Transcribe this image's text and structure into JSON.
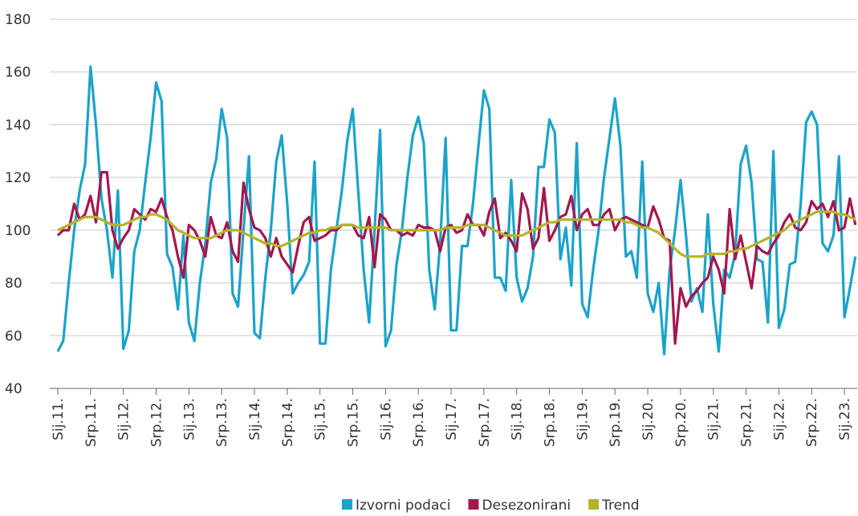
{
  "chart_data": {
    "type": "line",
    "categories": [
      "Sij.11.",
      null,
      null,
      null,
      null,
      null,
      "Srp.11.",
      null,
      null,
      null,
      null,
      null,
      "Sij.12.",
      null,
      null,
      null,
      null,
      null,
      "Srp.12.",
      null,
      null,
      null,
      null,
      null,
      "Sij.13.",
      null,
      null,
      null,
      null,
      null,
      "Srp.13.",
      null,
      null,
      null,
      null,
      null,
      "Sij.14.",
      null,
      null,
      null,
      null,
      null,
      "Srp.14.",
      null,
      null,
      null,
      null,
      null,
      "Sij.15.",
      null,
      null,
      null,
      null,
      null,
      "Srp.15.",
      null,
      null,
      null,
      null,
      null,
      "Sij.16.",
      null,
      null,
      null,
      null,
      null,
      "Srp.16.",
      null,
      null,
      null,
      null,
      null,
      "Sij.17.",
      null,
      null,
      null,
      null,
      null,
      "Srp.17.",
      null,
      null,
      null,
      null,
      null,
      "Sij.18.",
      null,
      null,
      null,
      null,
      null,
      "Srp.18.",
      null,
      null,
      null,
      null,
      null,
      "Sij.19.",
      null,
      null,
      null,
      null,
      null,
      "Srp.19.",
      null,
      null,
      null,
      null,
      null,
      "Sij.20.",
      null,
      null,
      null,
      null,
      null,
      "Srp.20.",
      null,
      null,
      null,
      null,
      null,
      "Sij.21.",
      null,
      null,
      null,
      null,
      null,
      "Srp.21.",
      null,
      null,
      null,
      null,
      null,
      "Sij.22.",
      null,
      null,
      null,
      null,
      null,
      "Srp.22.",
      null,
      null,
      null,
      null,
      null,
      "Sij.23.",
      null,
      null
    ],
    "series": [
      {
        "name": "Izvorni podaci",
        "color": "#1ba3c9",
        "values": [
          54,
          58,
          80,
          100,
          115,
          125,
          162,
          140,
          112,
          100,
          82,
          115,
          55,
          62,
          92,
          100,
          118,
          135,
          156,
          149,
          91,
          86,
          70,
          98,
          65,
          58,
          80,
          95,
          118,
          127,
          146,
          135,
          76,
          71,
          100,
          128,
          61,
          59,
          82,
          100,
          126,
          136,
          110,
          76,
          80,
          83,
          88,
          126,
          57,
          57,
          85,
          100,
          115,
          134,
          146,
          115,
          85,
          65,
          100,
          138,
          56,
          62,
          87,
          100,
          120,
          136,
          143,
          133,
          85,
          70,
          95,
          135,
          62,
          62,
          94,
          94,
          110,
          132,
          153,
          146,
          82,
          82,
          77,
          119,
          82,
          73,
          78,
          90,
          124,
          124,
          142,
          137,
          89,
          101,
          79,
          133,
          72,
          67,
          85,
          100,
          120,
          135,
          150,
          132,
          90,
          92,
          82,
          126,
          76,
          69,
          80,
          53,
          85,
          100,
          119,
          98,
          73,
          78,
          69,
          106,
          72,
          54,
          85,
          82,
          91,
          125,
          132,
          118,
          89,
          88,
          65,
          130,
          63,
          70,
          87,
          88,
          110,
          141,
          145,
          140,
          95,
          92,
          98,
          128,
          67,
          78,
          90
        ]
      },
      {
        "name": "Desezonirani",
        "color": "#a3174f",
        "values": [
          98,
          100,
          100,
          110,
          104,
          106,
          113,
          103,
          122,
          122,
          100,
          93,
          97,
          100,
          108,
          106,
          104,
          108,
          107,
          112,
          105,
          100,
          90,
          82,
          102,
          100,
          96,
          90,
          105,
          98,
          97,
          103,
          92,
          88,
          118,
          108,
          101,
          100,
          97,
          90,
          97,
          90,
          87,
          84,
          94,
          103,
          105,
          96,
          97,
          98,
          100,
          100,
          102,
          102,
          102,
          98,
          97,
          105,
          86,
          106,
          104,
          100,
          100,
          98,
          99,
          98,
          102,
          101,
          101,
          100,
          92,
          101,
          102,
          99,
          100,
          106,
          102,
          102,
          98,
          107,
          112,
          97,
          99,
          96,
          92,
          114,
          108,
          93,
          97,
          116,
          96,
          100,
          105,
          106,
          113,
          100,
          106,
          108,
          102,
          102,
          106,
          108,
          100,
          104,
          105,
          104,
          103,
          102,
          101,
          109,
          104,
          97,
          96,
          57,
          78,
          71,
          75,
          77,
          80,
          82,
          90,
          85,
          76,
          108,
          89,
          98,
          88,
          78,
          94,
          92,
          91,
          95,
          98,
          103,
          106,
          101,
          100,
          103,
          111,
          108,
          110,
          105,
          111,
          100,
          101,
          112,
          102
        ]
      },
      {
        "name": "Trend",
        "color": "#b4b42a",
        "values": [
          100,
          101,
          102,
          103,
          104,
          105,
          105,
          105,
          104,
          103,
          102,
          102,
          102,
          103,
          104,
          105,
          105,
          106,
          106,
          105,
          104,
          102,
          100,
          99,
          98,
          97,
          97,
          97,
          97,
          98,
          99,
          100,
          100,
          100,
          99,
          98,
          97,
          96,
          95,
          95,
          94,
          94,
          95,
          96,
          97,
          98,
          99,
          99,
          100,
          100,
          101,
          101,
          102,
          102,
          102,
          101,
          101,
          101,
          101,
          101,
          101,
          100,
          100,
          100,
          100,
          100,
          100,
          100,
          100,
          100,
          100,
          101,
          101,
          101,
          101,
          102,
          102,
          102,
          102,
          101,
          100,
          99,
          98,
          98,
          98,
          98,
          99,
          100,
          101,
          102,
          103,
          103,
          104,
          104,
          104,
          104,
          104,
          104,
          104,
          104,
          104,
          104,
          104,
          104,
          103,
          103,
          102,
          101,
          101,
          100,
          99,
          97,
          95,
          93,
          91,
          90,
          90,
          90,
          90,
          91,
          91,
          91,
          91,
          92,
          92,
          93,
          93,
          94,
          95,
          96,
          97,
          98,
          99,
          100,
          102,
          103,
          104,
          105,
          106,
          107,
          107,
          107,
          107,
          106,
          106,
          105,
          104
        ]
      }
    ],
    "ylim": [
      40,
      180
    ],
    "yticks": [
      40,
      60,
      80,
      100,
      120,
      140,
      160,
      180
    ],
    "grid": true
  }
}
